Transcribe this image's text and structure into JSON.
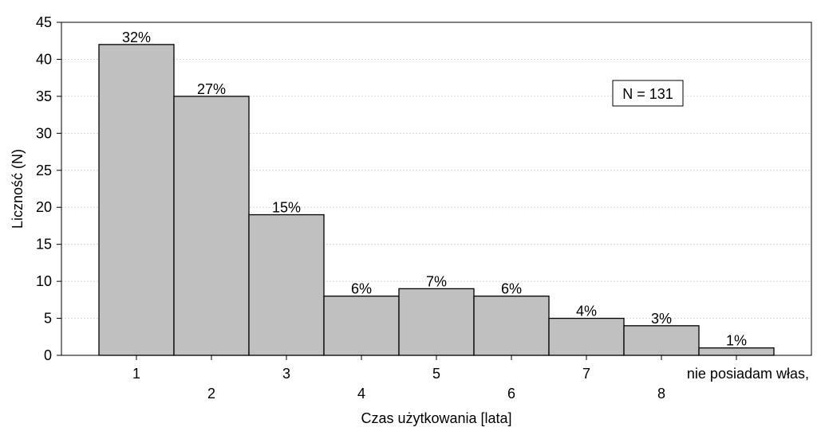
{
  "chart_data": {
    "type": "bar",
    "categories": [
      "1",
      "2",
      "3",
      "4",
      "5",
      "6",
      "7",
      "8",
      "nie posiadam włas,"
    ],
    "values": [
      42,
      35,
      19,
      8,
      9,
      8,
      5,
      4,
      1
    ],
    "data_labels": [
      "32%",
      "27%",
      "15%",
      "6%",
      "7%",
      "6%",
      "4%",
      "3%",
      "1%"
    ],
    "title": "",
    "xlabel": "Czas użytkowania [lata]",
    "ylabel": "Liczność (N)",
    "ylim": [
      0,
      45
    ],
    "yticks": [
      0,
      5,
      10,
      15,
      20,
      25,
      30,
      35,
      40,
      45
    ],
    "grid": true,
    "annotation": "N = 131",
    "annotation_position": "top-right",
    "colors": {
      "bar_fill": "#c0c0c0",
      "bar_stroke": "#000000",
      "grid": "#d8d8d8"
    }
  }
}
